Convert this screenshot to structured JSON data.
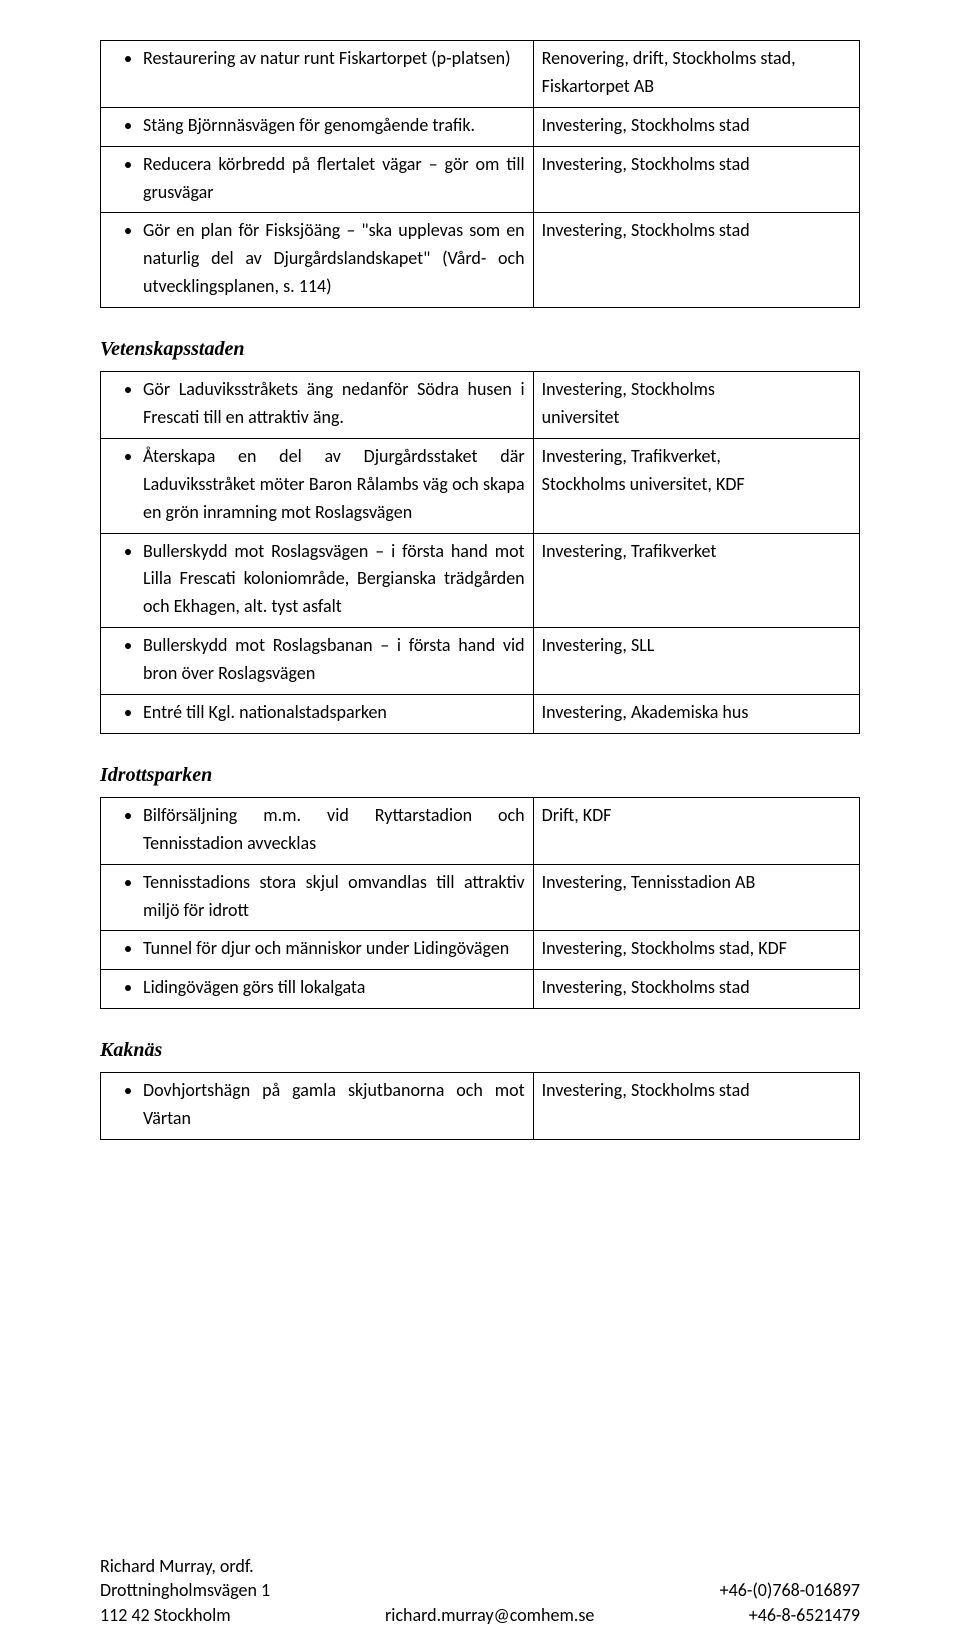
{
  "table1": {
    "rows": [
      {
        "left": "Restaurering av natur runt Fiskartorpet (p-platsen)",
        "right": "Renovering, drift, Stockholms stad, Fiskartorpet AB"
      },
      {
        "left": "Stäng Björnnäsvägen för genomgående trafik.",
        "right": "Investering, Stockholms stad"
      },
      {
        "left": "Reducera körbredd på flertalet vägar – gör om till grusvägar",
        "right": "Investering, Stockholms stad"
      },
      {
        "left": "Gör en plan för Fisksjöäng – \"ska upplevas som en naturlig del av Djurgårdslandskapet\" (Vård- och utvecklingsplanen, s. 114)",
        "right": "Investering, Stockholms stad"
      }
    ]
  },
  "section2_title": "Vetenskapsstaden",
  "table2": {
    "rows": [
      {
        "left": "Gör Laduviksstråkets äng nedanför Södra husen i Frescati till en attraktiv äng.",
        "right": "Investering, Stockholms universitet"
      },
      {
        "left": "Återskapa en del av Djurgårdsstaket där Laduviksstråket möter Baron Rålambs väg och skapa en grön inramning mot Roslagsvägen",
        "right": "Investering, Trafikverket, Stockholms universitet, KDF"
      },
      {
        "left": "Bullerskydd mot Roslagsvägen – i första hand mot Lilla Frescati koloniområde, Bergianska trädgården och Ekhagen, alt. tyst asfalt",
        "right": "Investering, Trafikverket"
      },
      {
        "left": "Bullerskydd mot Roslagsbanan – i första hand vid bron över Roslagsvägen",
        "right": "Investering, SLL"
      },
      {
        "left": "Entré till Kgl. nationalstadsparken",
        "right": "Investering, Akademiska hus"
      }
    ]
  },
  "section3_title": "Idrottsparken",
  "table3": {
    "rows": [
      {
        "left": "Bilförsäljning m.m. vid Ryttarstadion och Tennisstadion avvecklas",
        "right": "Drift, KDF"
      },
      {
        "left": "Tennisstadions stora skjul omvandlas till attraktiv miljö för idrott",
        "right": "Investering, Tennisstadion AB"
      },
      {
        "left": "Tunnel för djur och människor under Lidingövägen",
        "right": "Investering, Stockholms stad, KDF"
      },
      {
        "left": "Lidingövägen görs till lokalgata",
        "right": "Investering, Stockholms stad"
      }
    ]
  },
  "section4_title": "Kaknäs",
  "table4": {
    "rows": [
      {
        "left": "Dovhjortshägn på gamla skjutbanorna och mot Värtan",
        "right": "Investering, Stockholms stad"
      }
    ]
  },
  "footer": {
    "name": "Richard Murray, ordf.",
    "addr1": "Drottningholmsvägen 1",
    "addr2": "112 42 Stockholm",
    "email": "richard.murray@comhem.se",
    "phone1": "+46-(0)768-016897",
    "phone2": "+46-8-6521479"
  },
  "table2_right_special": {
    "0": "Investering,                    Stockholms\nuniversitet",
    "1": "Investering,                   Trafikverket,\nStockholms universitet, KDF"
  }
}
